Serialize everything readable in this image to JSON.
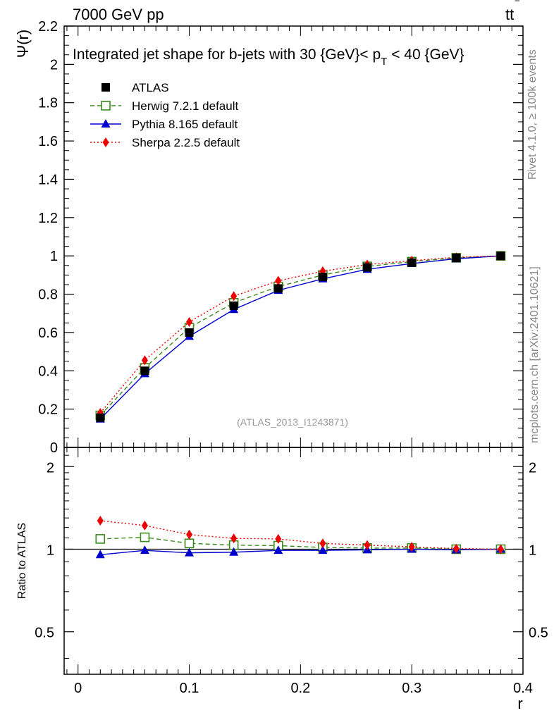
{
  "header": {
    "energy_label": "7000 GeV pp",
    "process_t": "tt",
    "process_bar": "‾"
  },
  "side_labels": {
    "rivet": "Rivet 4.1.0, ≥ 100k events",
    "mcplots": "mcplots.cern.ch [arXiv:2401.10621]"
  },
  "chart_data": [
    {
      "type": "line",
      "panel": "main",
      "title": "Integrated jet shape for b-jets with 30 {GeV}< p_T < 40 {GeV}",
      "title_parts": {
        "prefix": "Integrated jet shape for b-jets with 30 {GeV}< p",
        "subscript": "T",
        "suffix": " < 40 {GeV}"
      },
      "ylabel": "Ψ(r)",
      "xlabel": "",
      "analysis_label": "(ATLAS_2013_I1243871)",
      "xlim": [
        -0.0125,
        0.4
      ],
      "ylim": [
        0,
        2.2
      ],
      "yticks": [
        0,
        0.2,
        0.4,
        0.6,
        0.8,
        1,
        1.2,
        1.4,
        1.6,
        1.8,
        2,
        2.2
      ],
      "ytick_labels": [
        "0",
        "0.2",
        "0.4",
        "0.6",
        "0.8",
        "1",
        "1.2",
        "1.4",
        "1.6",
        "1.8",
        "2",
        "2.2"
      ],
      "x": [
        0.02,
        0.06,
        0.1,
        0.14,
        0.18,
        0.22,
        0.26,
        0.3,
        0.34,
        0.38
      ],
      "series": [
        {
          "name": "ATLAS",
          "legend_label": "ATLAS",
          "color": "#000000",
          "marker": "filled-square",
          "line": "none",
          "values": [
            0.155,
            0.4,
            0.6,
            0.74,
            0.83,
            0.89,
            0.94,
            0.965,
            0.99,
            1.0
          ]
        },
        {
          "name": "Herwig 7.2.1 default",
          "legend_label": "Herwig 7.2.1 default",
          "color": "#3a8a1c",
          "marker": "open-square",
          "line": "dashed",
          "values": [
            0.167,
            0.415,
            0.625,
            0.755,
            0.84,
            0.9,
            0.945,
            0.97,
            0.99,
            1.0
          ]
        },
        {
          "name": "Pythia 8.165 default",
          "legend_label": "Pythia 8.165 default",
          "color": "#0000cc",
          "marker": "filled-triangle",
          "line": "solid",
          "values": [
            0.148,
            0.385,
            0.58,
            0.72,
            0.82,
            0.88,
            0.93,
            0.96,
            0.985,
            1.0
          ]
        },
        {
          "name": "Sherpa 2.2.5 default",
          "legend_label": "Sherpa 2.2.5 default",
          "color": "#ee0000",
          "marker": "filled-diamond",
          "line": "dotted",
          "values": [
            0.18,
            0.455,
            0.655,
            0.79,
            0.87,
            0.92,
            0.955,
            0.975,
            0.993,
            1.0
          ]
        }
      ]
    },
    {
      "type": "line",
      "panel": "ratio",
      "ylabel": "Ratio to ATLAS",
      "xlabel": "r",
      "xlim": [
        -0.0125,
        0.4
      ],
      "ylim": [
        0.35,
        2.35
      ],
      "yticks": [
        0.5,
        1,
        2
      ],
      "ytick_labels": [
        "0.5",
        "1",
        "2"
      ],
      "xticks": [
        0,
        0.1,
        0.2,
        0.3,
        0.4
      ],
      "xtick_labels": [
        "0",
        "0.1",
        "0.2",
        "0.3",
        "0.4"
      ],
      "reference_line": 1,
      "x": [
        0.02,
        0.06,
        0.1,
        0.14,
        0.18,
        0.22,
        0.26,
        0.3,
        0.34,
        0.38
      ],
      "series": [
        {
          "name": "Herwig 7.2.1 default",
          "color": "#3a8a1c",
          "marker": "open-square",
          "line": "dashed",
          "values": [
            1.09,
            1.105,
            1.05,
            1.035,
            1.03,
            1.015,
            1.01,
            1.01,
            1.0,
            1.0
          ]
        },
        {
          "name": "Pythia 8.165 default",
          "color": "#0000cc",
          "marker": "filled-triangle",
          "line": "solid",
          "values": [
            0.955,
            0.99,
            0.97,
            0.975,
            0.99,
            0.99,
            0.995,
            1.0,
            0.995,
            1.0
          ]
        },
        {
          "name": "Sherpa 2.2.5 default",
          "color": "#ee0000",
          "marker": "filled-diamond",
          "line": "dotted",
          "values": [
            1.27,
            1.22,
            1.13,
            1.095,
            1.09,
            1.05,
            1.035,
            1.02,
            1.005,
            1.0
          ]
        }
      ]
    }
  ]
}
